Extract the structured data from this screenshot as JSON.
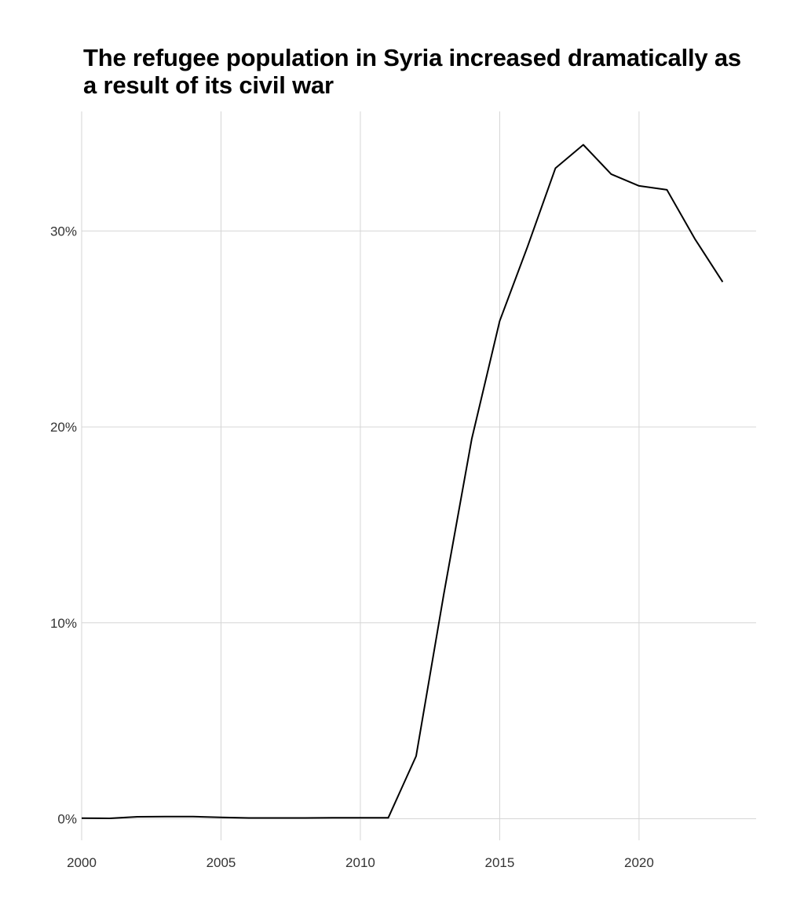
{
  "chart_data": {
    "type": "line",
    "title": "The refugee population in Syria increased dramatically as a result of its civil war",
    "xlabel": "",
    "ylabel": "",
    "x_ticks": [
      "2000",
      "2005",
      "2010",
      "2015",
      "2020"
    ],
    "y_ticks": [
      "0%",
      "10%",
      "20%",
      "30%"
    ],
    "xlim": [
      2000,
      2024.2
    ],
    "ylim": [
      -1.1,
      36.1
    ],
    "grid": true,
    "legend": "none",
    "colors": {
      "line": "#000000",
      "grid": "#d6d6d6"
    },
    "series": [
      {
        "x": [
          2000,
          2001,
          2002,
          2003,
          2004,
          2005,
          2006,
          2007,
          2008,
          2009,
          2010,
          2011,
          2012,
          2013,
          2014,
          2015,
          2016,
          2017,
          2018,
          2019,
          2020,
          2021,
          2022,
          2023
        ],
        "values": [
          0.03,
          0.02,
          0.1,
          0.11,
          0.11,
          0.07,
          0.04,
          0.04,
          0.04,
          0.05,
          0.05,
          0.05,
          3.2,
          11.5,
          19.4,
          25.4,
          29.2,
          33.2,
          34.4,
          32.9,
          32.3,
          32.1,
          29.6,
          27.4
        ]
      }
    ]
  }
}
